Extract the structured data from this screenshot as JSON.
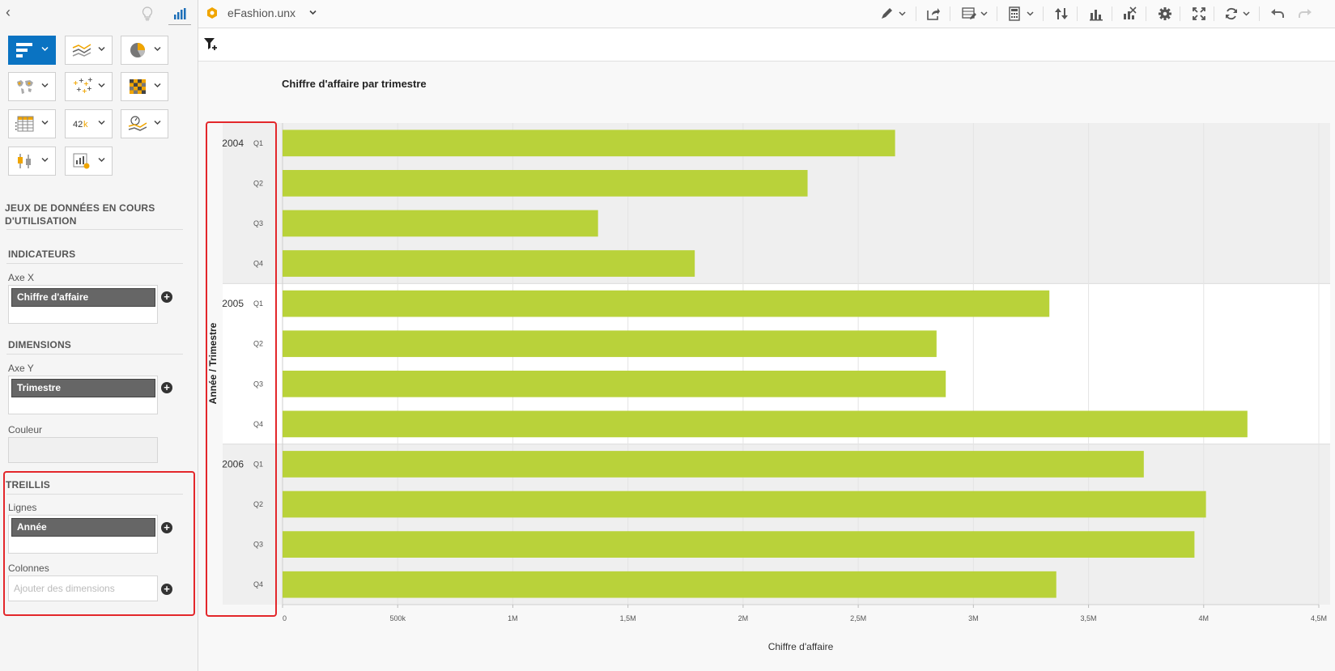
{
  "toolbar": {
    "document_title": "eFashion.unx"
  },
  "left_panel": {
    "chart_types": [
      {
        "name": "bar-chart",
        "selected": true
      },
      {
        "name": "line-chart",
        "selected": false
      },
      {
        "name": "pie-chart",
        "selected": false
      },
      {
        "name": "geo-map",
        "selected": false
      },
      {
        "name": "scatter-chart",
        "selected": false
      },
      {
        "name": "heatmap",
        "selected": false
      },
      {
        "name": "table",
        "selected": false
      },
      {
        "name": "numeric-point",
        "selected": false,
        "label": "42k"
      },
      {
        "name": "trend-chart",
        "selected": false
      },
      {
        "name": "box-plot",
        "selected": false
      },
      {
        "name": "custom-chart",
        "selected": false
      }
    ],
    "datasets_title": "JEUX DE DONNÉES EN COURS D'UTILISATION",
    "indicators": {
      "title": "INDICATEURS",
      "axis_x_label": "Axe X",
      "axis_x_value": "Chiffre d'affaire"
    },
    "dimensions": {
      "title": "DIMENSIONS",
      "axis_y_label": "Axe Y",
      "axis_y_value": "Trimestre",
      "color_label": "Couleur"
    },
    "trellis": {
      "title": "TREILLIS",
      "rows_label": "Lignes",
      "rows_value": "Année",
      "columns_label": "Colonnes",
      "columns_placeholder": "Ajouter des dimensions"
    }
  },
  "colors": {
    "bar": "#b9d23a",
    "accent": "#0a73c2",
    "highlight": "#e3272b"
  },
  "chart_data": {
    "type": "bar",
    "orientation": "horizontal",
    "title": "Chiffre d'affaire par trimestre",
    "xlabel": "Chiffre d'affaire",
    "ylabel": "Année / Trimestre",
    "xlim": [
      0,
      4500000
    ],
    "x_ticks": [
      {
        "value": 0,
        "label": "0"
      },
      {
        "value": 500000,
        "label": "500k"
      },
      {
        "value": 1000000,
        "label": "1M"
      },
      {
        "value": 1500000,
        "label": "1,5M"
      },
      {
        "value": 2000000,
        "label": "2M"
      },
      {
        "value": 2500000,
        "label": "2,5M"
      },
      {
        "value": 3000000,
        "label": "3M"
      },
      {
        "value": 3500000,
        "label": "3,5M"
      },
      {
        "value": 4000000,
        "label": "4M"
      },
      {
        "value": 4500000,
        "label": "4,5M"
      }
    ],
    "groups": [
      {
        "year": "2004",
        "quarters": [
          "Q1",
          "Q2",
          "Q3",
          "Q4"
        ],
        "values": [
          2660000,
          2280000,
          1370000,
          1790000
        ]
      },
      {
        "year": "2005",
        "quarters": [
          "Q1",
          "Q2",
          "Q3",
          "Q4"
        ],
        "values": [
          3330000,
          2840000,
          2880000,
          4190000
        ]
      },
      {
        "year": "2006",
        "quarters": [
          "Q1",
          "Q2",
          "Q3",
          "Q4"
        ],
        "values": [
          3740000,
          4010000,
          3960000,
          3360000
        ]
      }
    ],
    "grid": true
  }
}
